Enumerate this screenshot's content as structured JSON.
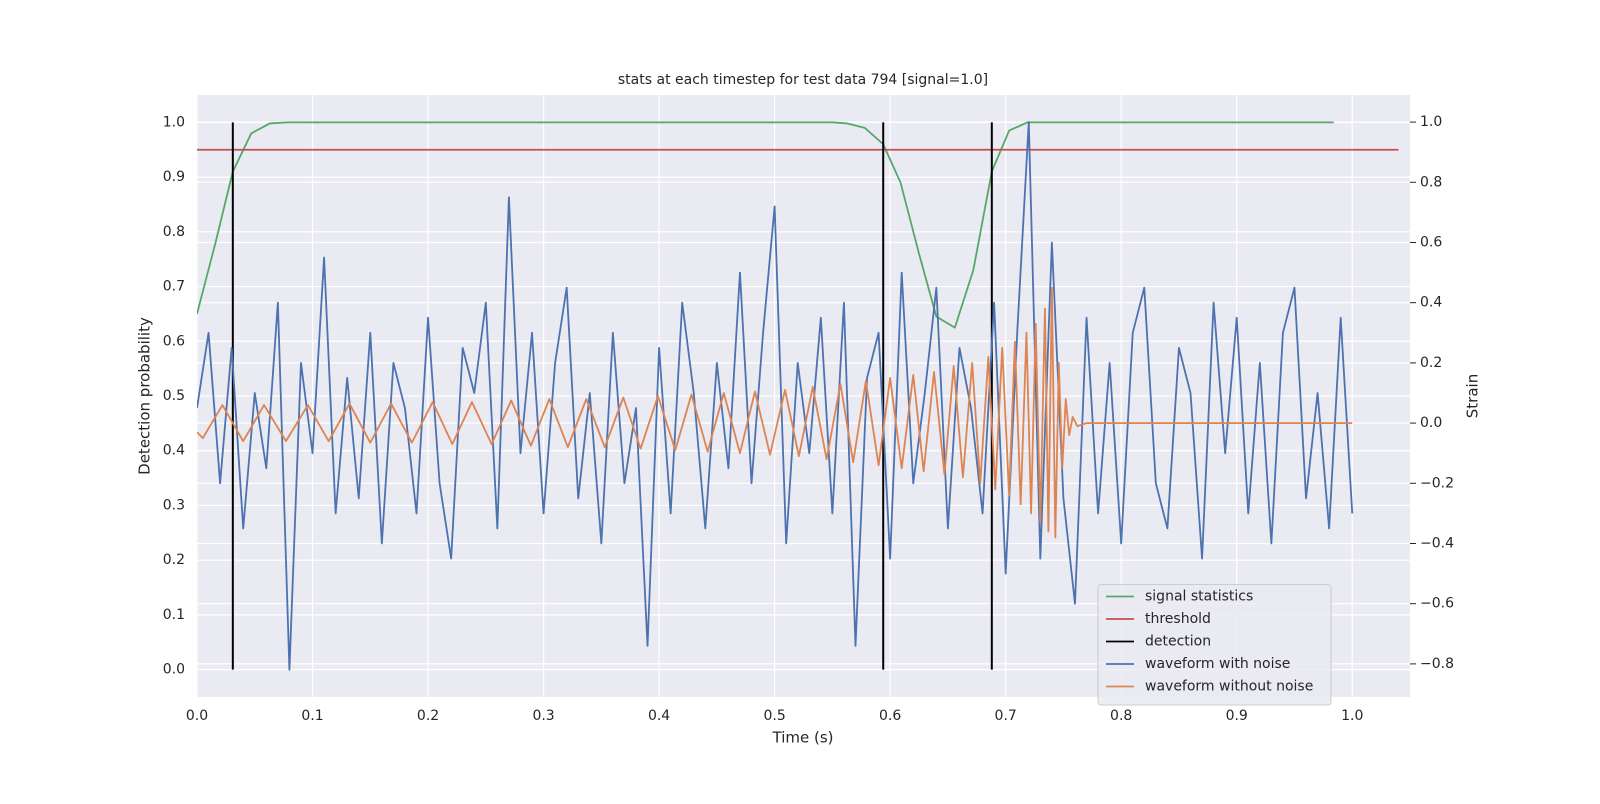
{
  "chart_data": {
    "type": "line",
    "title": "stats at each timestep for test data 794 [signal=1.0]",
    "x_label": "Time (s)",
    "y_label": "Detection probability",
    "y2_label": "Strain",
    "xlim": [
      0,
      1.05
    ],
    "ylim": [
      -0.05,
      1.05
    ],
    "y2lim": [
      -0.91,
      1.09
    ],
    "xticks": [
      {
        "value": 0,
        "label": "0.0"
      },
      0.1,
      0.2,
      0.3,
      0.4,
      0.5,
      0.6,
      0.7,
      0.8,
      0.9,
      {
        "value": 1,
        "label": "1.0"
      }
    ],
    "yticks": [
      {
        "value": 0,
        "label": "0.0"
      },
      0.1,
      0.2,
      0.3,
      0.4,
      0.5,
      0.6,
      0.7,
      0.8,
      0.9,
      {
        "value": 1,
        "label": "1.0"
      }
    ],
    "y2ticks": [
      {
        "value": -0.8,
        "label": "−0.8"
      },
      {
        "value": -0.6,
        "label": "−0.6"
      },
      {
        "value": -0.4,
        "label": "−0.4"
      },
      {
        "value": -0.2,
        "label": "−0.2"
      },
      {
        "value": 0,
        "label": "0.0"
      },
      0.2,
      0.4,
      0.6,
      0.8,
      {
        "value": 1,
        "label": "1.0"
      }
    ],
    "grid": true,
    "legend_position": "lower right",
    "series": [
      {
        "name": "signal statistics",
        "color": "#55a868",
        "x": [
          0,
          0.016,
          0.031,
          0.047,
          0.063,
          0.078,
          0.2,
          0.4,
          0.55,
          0.563,
          0.578,
          0.594,
          0.609,
          0.625,
          0.64,
          0.656,
          0.672,
          0.688,
          0.703,
          0.719,
          0.8,
          0.984
        ],
        "values": [
          0.65,
          0.78,
          0.91,
          0.98,
          0.998,
          1.0,
          1.0,
          1.0,
          1.0,
          0.998,
          0.99,
          0.96,
          0.89,
          0.76,
          0.645,
          0.625,
          0.73,
          0.91,
          0.985,
          1.0,
          1.0,
          1.0
        ]
      },
      {
        "name": "threshold",
        "color": "#c44e52",
        "x": [
          0,
          1.04
        ],
        "values": [
          0.95,
          0.95
        ]
      },
      {
        "name": "detection",
        "color": "#000000",
        "x": [
          0.031,
          0.594,
          0.688
        ],
        "ymin": 0,
        "ymax": 1
      },
      {
        "name": "waveform with noise",
        "color": "#4c72b0",
        "axis": "y2",
        "x": [
          0,
          0.01,
          0.02,
          0.03,
          0.04,
          0.05,
          0.06,
          0.07,
          0.08,
          0.09,
          0.1,
          0.11,
          0.12,
          0.13,
          0.14,
          0.15,
          0.16,
          0.17,
          0.18,
          0.19,
          0.2,
          0.21,
          0.22,
          0.23,
          0.24,
          0.25,
          0.26,
          0.27,
          0.28,
          0.29,
          0.3,
          0.31,
          0.32,
          0.33,
          0.34,
          0.35,
          0.36,
          0.37,
          0.38,
          0.39,
          0.4,
          0.41,
          0.42,
          0.43,
          0.44,
          0.45,
          0.46,
          0.47,
          0.48,
          0.49,
          0.5,
          0.51,
          0.52,
          0.53,
          0.54,
          0.55,
          0.56,
          0.57,
          0.58,
          0.59,
          0.6,
          0.61,
          0.62,
          0.63,
          0.64,
          0.65,
          0.66,
          0.67,
          0.68,
          0.69,
          0.7,
          0.71,
          0.72,
          0.73,
          0.74,
          0.75,
          0.76,
          0.77,
          0.78,
          0.79,
          0.8,
          0.81,
          0.82,
          0.83,
          0.84,
          0.85,
          0.86,
          0.87,
          0.88,
          0.89,
          0.9,
          0.91,
          0.92,
          0.93,
          0.94,
          0.95,
          0.96,
          0.97,
          0.98,
          0.99,
          1.0
        ],
        "values": [
          0.05,
          0.3,
          -0.2,
          0.25,
          -0.35,
          0.1,
          -0.15,
          0.4,
          -0.82,
          0.2,
          -0.1,
          0.55,
          -0.3,
          0.15,
          -0.25,
          0.3,
          -0.4,
          0.2,
          0.05,
          -0.3,
          0.35,
          -0.2,
          -0.45,
          0.25,
          0.1,
          0.4,
          -0.35,
          0.75,
          -0.1,
          0.3,
          -0.3,
          0.2,
          0.45,
          -0.25,
          0.1,
          -0.4,
          0.3,
          -0.2,
          0.05,
          -0.74,
          0.25,
          -0.3,
          0.4,
          0.1,
          -0.35,
          0.2,
          -0.15,
          0.5,
          -0.2,
          0.3,
          0.72,
          -0.4,
          0.2,
          -0.1,
          0.35,
          -0.3,
          0.4,
          -0.74,
          0.15,
          0.3,
          -0.45,
          0.5,
          -0.2,
          0.1,
          0.45,
          -0.35,
          0.25,
          0.05,
          -0.3,
          0.4,
          -0.5,
          0.3,
          1.0,
          -0.45,
          0.6,
          -0.25,
          -0.6,
          0.35,
          -0.3,
          0.2,
          -0.4,
          0.3,
          0.45,
          -0.2,
          -0.35,
          0.25,
          0.1,
          -0.45,
          0.4,
          -0.1,
          0.35,
          -0.3,
          0.2,
          -0.4,
          0.3,
          0.45,
          -0.25,
          0.1,
          -0.35,
          0.35,
          -0.3
        ]
      },
      {
        "name": "waveform without noise",
        "color": "#dd8452",
        "axis": "y2",
        "x": [
          0,
          0.005,
          0.022,
          0.04,
          0.058,
          0.077,
          0.096,
          0.114,
          0.132,
          0.15,
          0.168,
          0.186,
          0.204,
          0.221,
          0.238,
          0.255,
          0.272,
          0.289,
          0.305,
          0.321,
          0.337,
          0.353,
          0.369,
          0.384,
          0.399,
          0.414,
          0.428,
          0.442,
          0.456,
          0.47,
          0.483,
          0.496,
          0.509,
          0.521,
          0.533,
          0.545,
          0.557,
          0.568,
          0.579,
          0.59,
          0.6,
          0.61,
          0.62,
          0.629,
          0.638,
          0.647,
          0.655,
          0.663,
          0.671,
          0.678,
          0.685,
          0.691,
          0.697,
          0.703,
          0.708,
          0.713,
          0.718,
          0.722,
          0.726,
          0.73,
          0.734,
          0.737,
          0.74,
          0.743,
          0.746,
          0.749,
          0.752,
          0.755,
          0.758,
          0.762,
          0.77,
          1.0
        ],
        "values": [
          -0.03,
          -0.05,
          0.06,
          -0.06,
          0.06,
          -0.06,
          0.06,
          -0.06,
          0.065,
          -0.065,
          0.065,
          -0.065,
          0.07,
          -0.07,
          0.07,
          -0.07,
          0.075,
          -0.075,
          0.08,
          -0.08,
          0.08,
          -0.08,
          0.085,
          -0.085,
          0.09,
          -0.09,
          0.095,
          -0.095,
          0.1,
          -0.1,
          0.105,
          -0.105,
          0.11,
          -0.11,
          0.12,
          -0.12,
          0.13,
          -0.13,
          0.14,
          -0.14,
          0.15,
          -0.15,
          0.16,
          -0.16,
          0.17,
          -0.17,
          0.19,
          -0.18,
          0.2,
          -0.2,
          0.22,
          -0.22,
          0.25,
          -0.24,
          0.27,
          -0.27,
          0.3,
          -0.3,
          0.33,
          -0.33,
          0.38,
          -0.36,
          0.45,
          -0.38,
          0.2,
          -0.15,
          0.08,
          -0.04,
          0.02,
          -0.01,
          0,
          0
        ]
      }
    ]
  }
}
